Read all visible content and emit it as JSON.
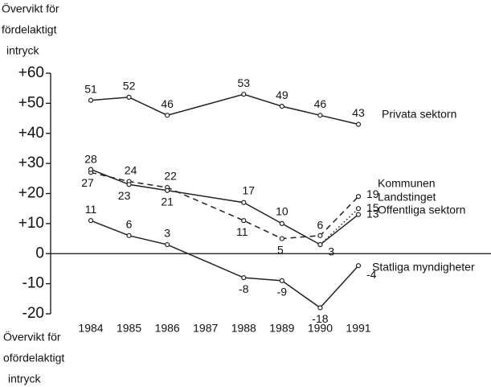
{
  "chart_data": {
    "type": "line",
    "y_label_top": [
      "Övervikt för",
      "fördelaktigt",
      "intryck"
    ],
    "y_label_bottom": [
      "Övervikt för",
      "ofördelaktigt",
      "intryck"
    ],
    "x": [
      1984,
      1985,
      1986,
      1988,
      1989,
      1990,
      1991
    ],
    "xlim": [
      1984,
      1991
    ],
    "xticks": [
      1984,
      1985,
      1986,
      1987,
      1988,
      1989,
      1990,
      1991
    ],
    "ylim": [
      -20,
      60
    ],
    "yticks": [
      {
        "value": 60,
        "label": "+60"
      },
      {
        "value": 50,
        "label": "+50"
      },
      {
        "value": 40,
        "label": "+40"
      },
      {
        "value": 30,
        "label": "+30"
      },
      {
        "value": 20,
        "label": "+20"
      },
      {
        "value": 10,
        "label": "+10"
      },
      0,
      -10,
      -20
    ],
    "series": [
      {
        "name": "Privata sektorn",
        "color": "#222",
        "dash": "solid",
        "values": [
          51,
          52,
          46,
          53,
          49,
          46,
          43
        ]
      },
      {
        "name": "Kommunen",
        "color": "#222",
        "dash": "dashed",
        "values": [
          27,
          24,
          22,
          11,
          5,
          6,
          19
        ]
      },
      {
        "name": "Landstinget",
        "color": "#222",
        "dash": "dotted",
        "values": [
          null,
          null,
          null,
          null,
          null,
          3,
          15
        ]
      },
      {
        "name": "Offentliga sektorn",
        "color": "#222",
        "dash": "solid",
        "values": [
          28,
          23,
          21,
          17,
          10,
          3,
          13
        ]
      },
      {
        "name": "Statliga myndigheter",
        "color": "#222",
        "dash": "solid",
        "values": [
          11,
          6,
          3,
          -8,
          -9,
          -18,
          -4
        ]
      }
    ]
  }
}
